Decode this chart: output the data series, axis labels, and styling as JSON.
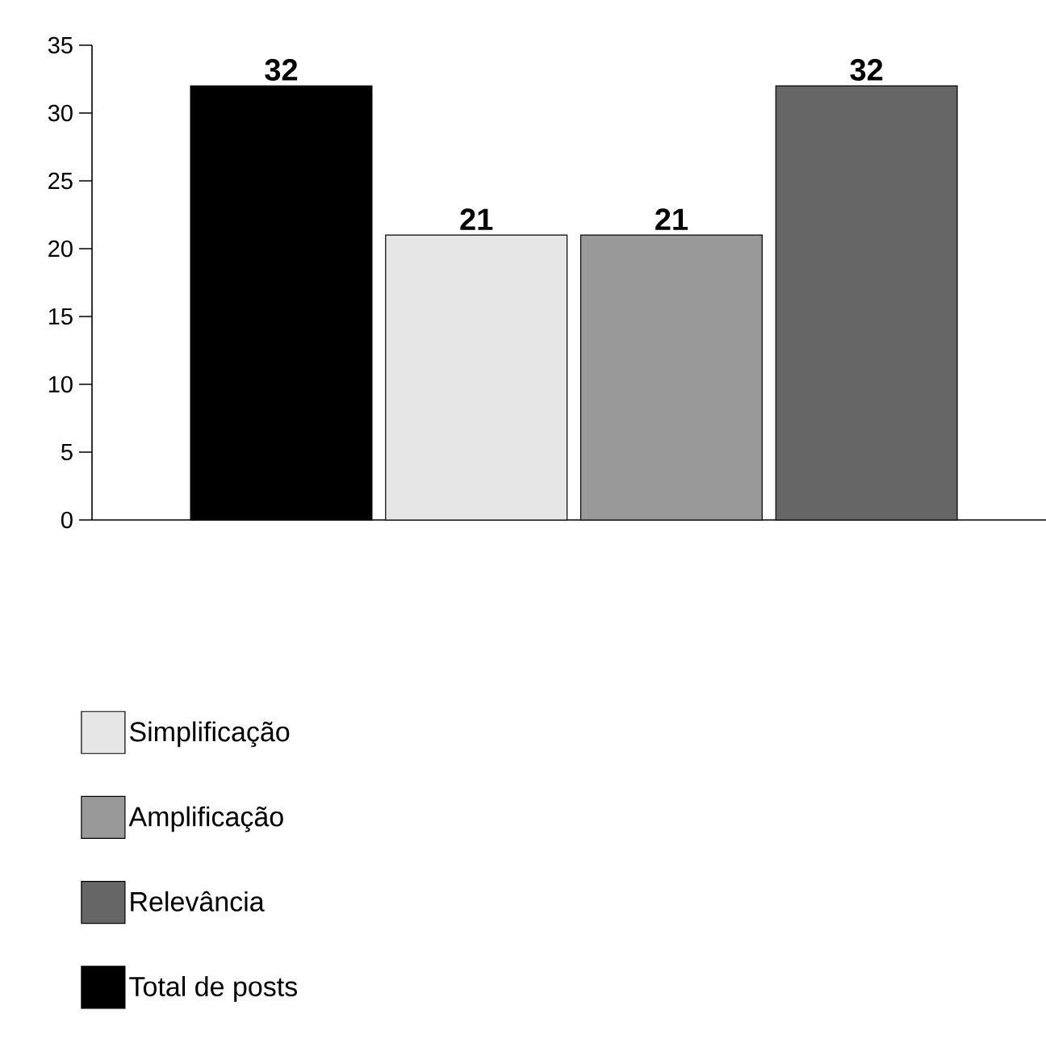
{
  "chart_data": {
    "type": "bar",
    "categories": [
      null,
      null,
      null,
      null
    ],
    "series": [
      {
        "name": "Simplificação",
        "color": "#e6e6e6",
        "values": [
          null,
          21,
          null,
          null
        ]
      },
      {
        "name": "Amplificação",
        "color": "#999999",
        "values": [
          null,
          null,
          21,
          null
        ]
      },
      {
        "name": "Relevância",
        "color": "#666666",
        "values": [
          null,
          null,
          null,
          32
        ]
      },
      {
        "name": "Total de posts",
        "color": "#000000",
        "values": [
          32,
          null,
          null,
          null
        ]
      }
    ],
    "ylim": [
      0,
      35
    ],
    "yticks": [
      0,
      5,
      10,
      15,
      20,
      25,
      30,
      35
    ],
    "data_labels": true,
    "legend": "bottom",
    "grid": false
  }
}
